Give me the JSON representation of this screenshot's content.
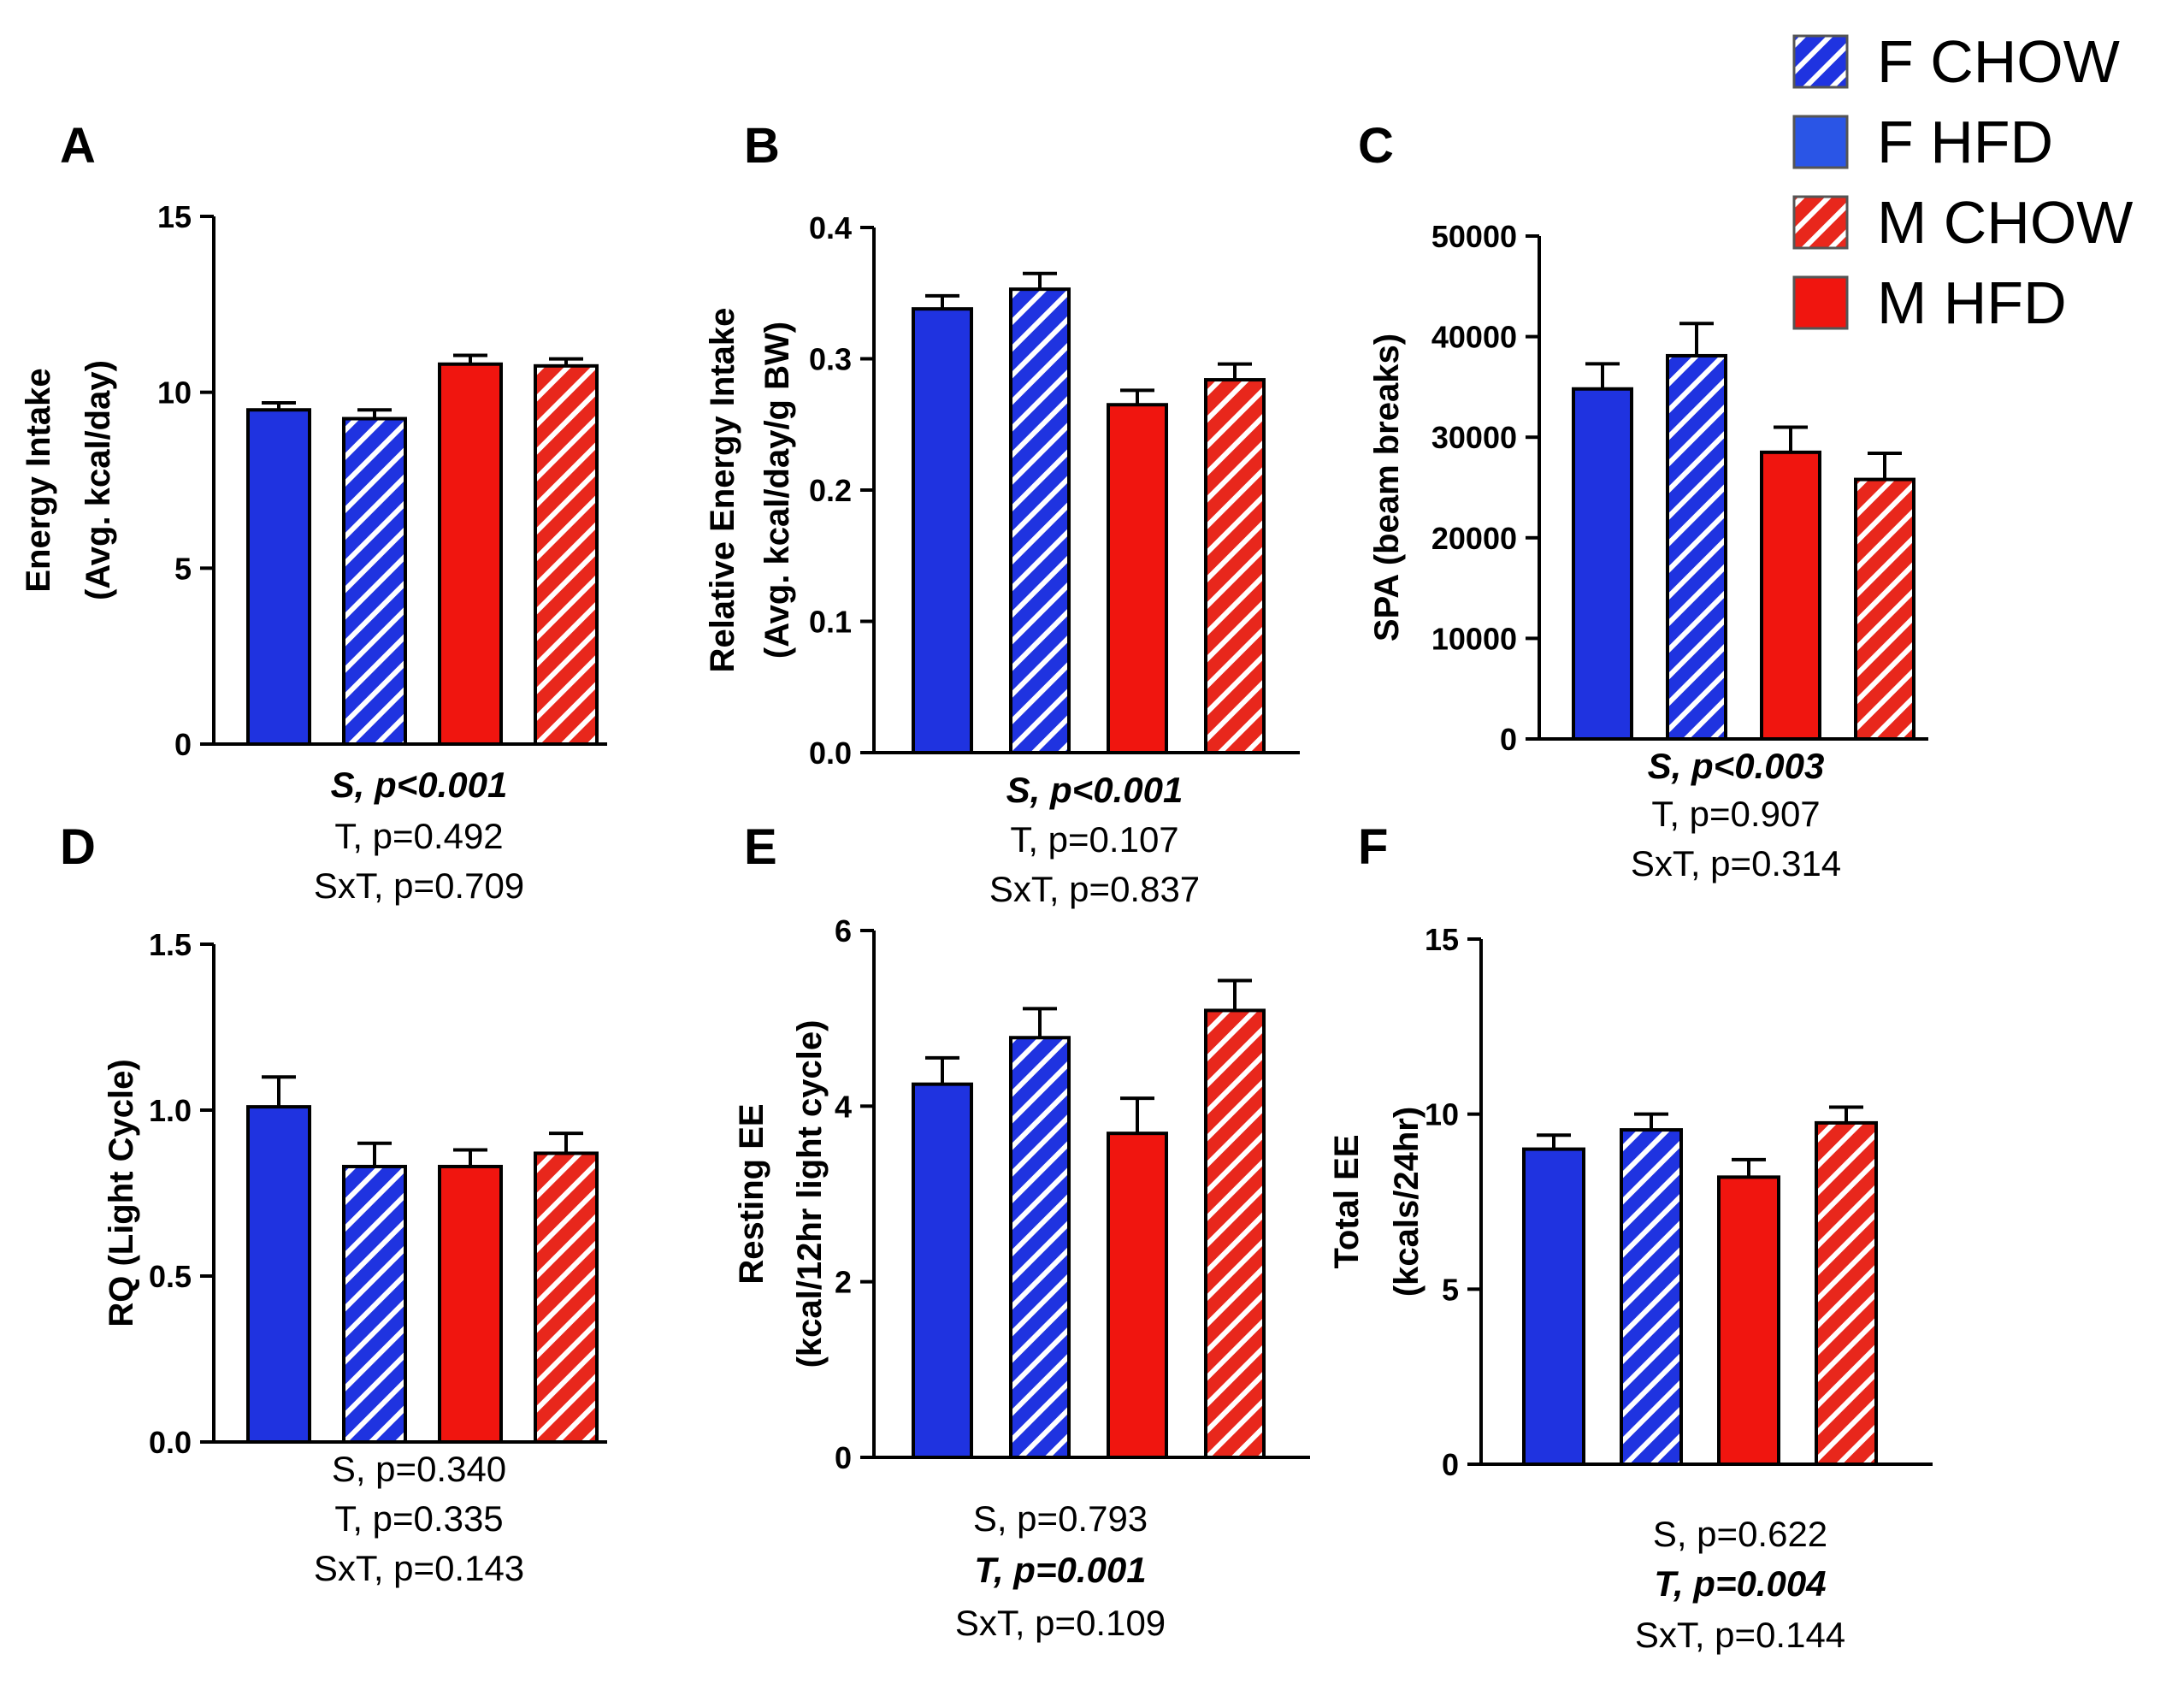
{
  "legend": [
    {
      "label": "F CHOW",
      "color": "#1f33e0",
      "pattern": "hatched"
    },
    {
      "label": "F HFD",
      "color": "#2a55e6",
      "pattern": "solid"
    },
    {
      "label": "M CHOW",
      "color": "#e8271c",
      "pattern": "hatched"
    },
    {
      "label": "M HFD",
      "color": "#f0150f",
      "pattern": "solid"
    }
  ],
  "colors": {
    "blue": "#1f33e0",
    "red": "#f0150f"
  },
  "chart_data": [
    {
      "panel": "A",
      "type": "bar",
      "ylabel": [
        "Energy Intake",
        "(Avg. kcal/day)"
      ],
      "ylim": [
        0,
        15
      ],
      "yticks": [
        "0",
        "5",
        "10",
        "15"
      ],
      "groups": [
        "F HFD",
        "F CHOW",
        "M HFD",
        "M CHOW"
      ],
      "values": [
        9.5,
        9.25,
        10.8,
        10.75
      ],
      "errors": [
        0.2,
        0.25,
        0.25,
        0.2
      ],
      "stats": [
        {
          "text": "S, p<0.001",
          "bold": true
        },
        {
          "text": "T, p=0.492",
          "bold": false
        },
        {
          "text": "SxT, p=0.709",
          "bold": false
        }
      ]
    },
    {
      "panel": "B",
      "type": "bar",
      "ylabel": [
        "Relative Energy Intake",
        "(Avg. kcal/day/g BW)"
      ],
      "ylim": [
        0,
        0.4
      ],
      "yticks": [
        "0.0",
        "0.1",
        "0.2",
        "0.3",
        "0.4"
      ],
      "groups": [
        "F HFD",
        "F CHOW",
        "M HFD",
        "M CHOW"
      ],
      "values": [
        0.338,
        0.353,
        0.265,
        0.284
      ],
      "errors": [
        0.01,
        0.012,
        0.011,
        0.012
      ],
      "stats": [
        {
          "text": "S, p<0.001",
          "bold": true
        },
        {
          "text": "T, p=0.107",
          "bold": false
        },
        {
          "text": "SxT, p=0.837",
          "bold": false
        }
      ]
    },
    {
      "panel": "C",
      "type": "bar",
      "ylabel": [
        "SPA (beam breaks)"
      ],
      "ylim": [
        0,
        50000
      ],
      "yticks": [
        "0",
        "10000",
        "20000",
        "30000",
        "40000",
        "50000"
      ],
      "groups": [
        "F HFD",
        "F CHOW",
        "M HFD",
        "M CHOW"
      ],
      "values": [
        34800,
        38100,
        28500,
        25800
      ],
      "errors": [
        2500,
        3200,
        2500,
        2600
      ],
      "stats": [
        {
          "text": "S, p<0.003",
          "bold": true
        },
        {
          "text": "T, p=0.907",
          "bold": false
        },
        {
          "text": "SxT, p=0.314",
          "bold": false
        }
      ]
    },
    {
      "panel": "D",
      "type": "bar",
      "ylabel": [
        "RQ (Light Cycle)"
      ],
      "ylim": [
        0,
        1.5
      ],
      "yticks": [
        "0.0",
        "0.5",
        "1.0",
        "1.5"
      ],
      "groups": [
        "F HFD",
        "F CHOW",
        "M HFD",
        "M CHOW"
      ],
      "values": [
        1.01,
        0.83,
        0.83,
        0.87
      ],
      "errors": [
        0.09,
        0.07,
        0.05,
        0.06
      ],
      "stats": [
        {
          "text": "S, p=0.340",
          "bold": false
        },
        {
          "text": "T, p=0.335",
          "bold": false
        },
        {
          "text": "SxT, p=0.143",
          "bold": false
        }
      ]
    },
    {
      "panel": "E",
      "type": "bar",
      "ylabel": [
        "Resting EE",
        "(kcal/12hr light cycle)"
      ],
      "ylim": [
        0,
        6
      ],
      "yticks": [
        "0",
        "2",
        "4",
        "6"
      ],
      "groups": [
        "F HFD",
        "F CHOW",
        "M HFD",
        "M CHOW"
      ],
      "values": [
        4.25,
        4.78,
        3.69,
        5.09
      ],
      "errors": [
        0.3,
        0.33,
        0.4,
        0.34
      ],
      "stats": [
        {
          "text": "S, p=0.793",
          "bold": false
        },
        {
          "text": "T, p=0.001",
          "bold": true
        },
        {
          "text": "SxT, p=0.109",
          "bold": false
        }
      ]
    },
    {
      "panel": "F",
      "type": "bar",
      "ylabel": [
        "Total EE",
        "(kcals/24hr)"
      ],
      "ylim": [
        0,
        15
      ],
      "yticks": [
        "0",
        "5",
        "10",
        "15"
      ],
      "groups": [
        "F HFD",
        "F CHOW",
        "M HFD",
        "M CHOW"
      ],
      "values": [
        9.0,
        9.55,
        8.2,
        9.75
      ],
      "errors": [
        0.4,
        0.45,
        0.5,
        0.45
      ],
      "stats": [
        {
          "text": "S, p=0.622",
          "bold": false
        },
        {
          "text": "T, p=0.004",
          "bold": true
        },
        {
          "text": "SxT, p=0.144",
          "bold": false
        }
      ]
    }
  ]
}
